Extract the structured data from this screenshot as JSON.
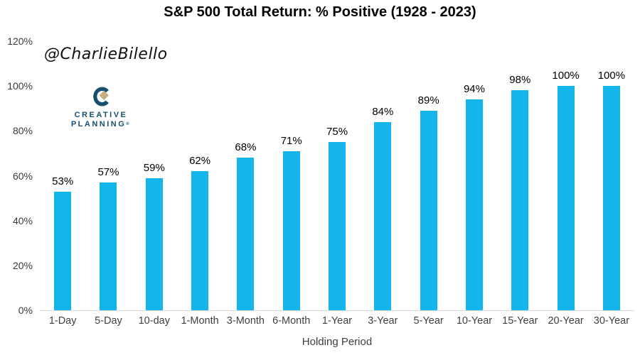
{
  "title": "S&P 500 Total Return: % Positive (1928 - 2023)",
  "watermark": "@CharlieBilello",
  "logo": {
    "line1": "CREATIVE",
    "line2": "PLANNING",
    "trademark": "®",
    "navy": "#17506e",
    "gold": "#c3b07e"
  },
  "chart_data": {
    "type": "bar",
    "categories": [
      "1-Day",
      "5-Day",
      "10-day",
      "1-Month",
      "3-Month",
      "6-Month",
      "1-Year",
      "3-Year",
      "5-Year",
      "10-Year",
      "15-Year",
      "20-Year",
      "30-Year"
    ],
    "values": [
      53,
      57,
      59,
      62,
      68,
      71,
      75,
      84,
      89,
      94,
      98,
      100,
      100
    ],
    "labels": [
      "53%",
      "57%",
      "59%",
      "62%",
      "68%",
      "71%",
      "75%",
      "84%",
      "89%",
      "94%",
      "98%",
      "100%",
      "100%"
    ],
    "title": "S&P 500 Total Return: % Positive (1928 - 2023)",
    "xlabel": "Holding Period",
    "ylabel": "",
    "ylim": [
      0,
      120
    ],
    "yticks": [
      "0%",
      "20%",
      "40%",
      "60%",
      "80%",
      "100%",
      "120%"
    ],
    "grid": false,
    "legend": false,
    "bar_color": "#13b6ea",
    "axis_line_color": "#d9d9d9"
  }
}
